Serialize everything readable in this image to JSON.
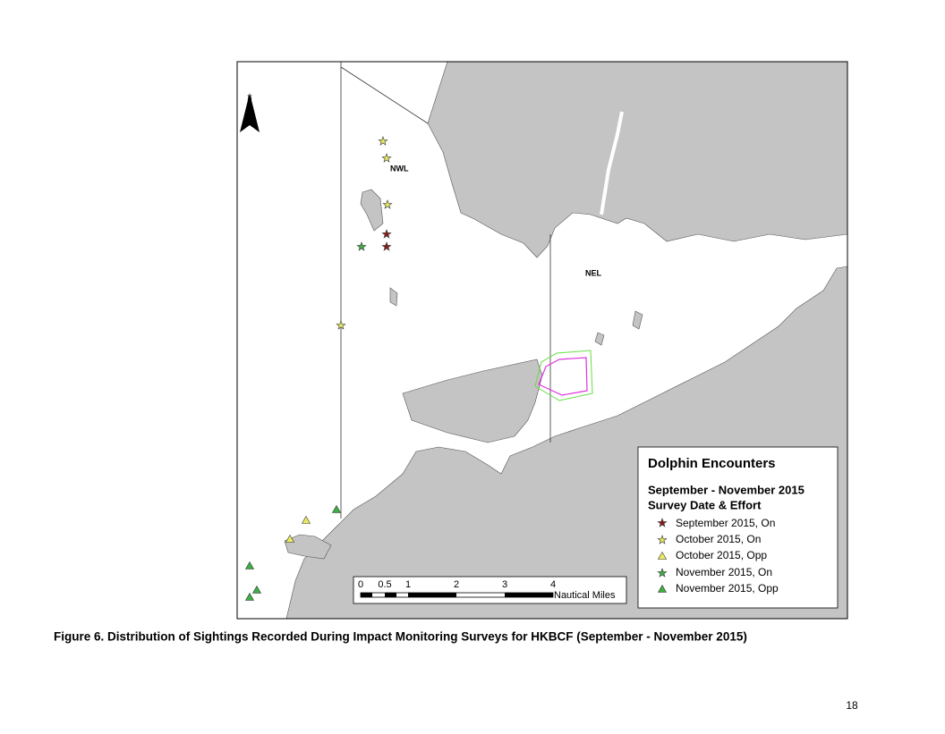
{
  "map": {
    "north": "N",
    "labels": [
      "NWL",
      "NEL"
    ],
    "legend": {
      "title": "Dolphin Encounters",
      "subtitle": "September - November 2015",
      "heading": "Survey Date & Effort",
      "items": [
        "September 2015, On",
        "October 2015, On",
        "October 2015, Opp",
        "November 2015, On",
        "November 2015, Opp"
      ]
    },
    "scale": {
      "ticks": [
        "0",
        "0.5",
        "1",
        "2",
        "3",
        "4"
      ],
      "unit": "Nautical Miles"
    }
  },
  "caption": "Figure 6. Distribution of Sightings Recorded During Impact Monitoring Surveys for HKBCF (September - November 2015)",
  "page_number": "18"
}
